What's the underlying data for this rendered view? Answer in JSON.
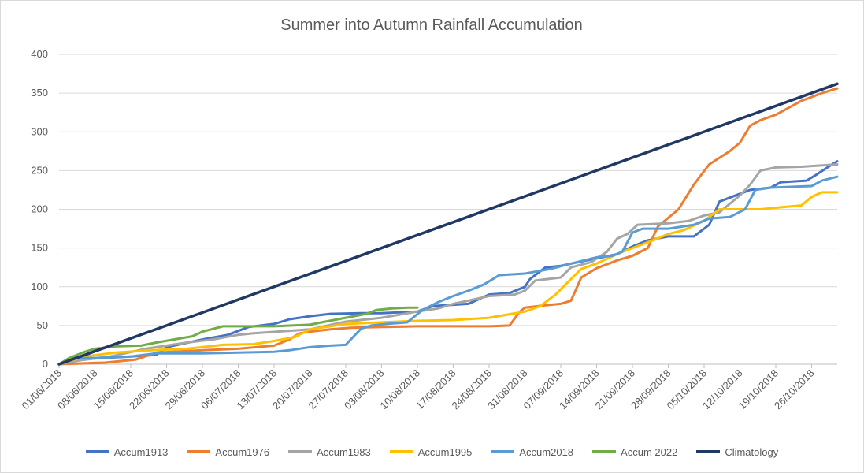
{
  "chart_data": {
    "type": "line",
    "title": "Summer  into Autumn Rainfall Accumulation",
    "xlabel": "",
    "ylabel": "",
    "ylim": [
      0,
      400
    ],
    "yticks": [
      "0",
      "50",
      "100",
      "150",
      "200",
      "250",
      "300",
      "350",
      "400"
    ],
    "x_start": "01/06/2018",
    "x_end": "31/10/2018",
    "x_tick_labels": [
      "01/06/2018",
      "08/06/2018",
      "15/06/2018",
      "22/06/2018",
      "29/06/2018",
      "06/07/2018",
      "13/07/2018",
      "20/07/2018",
      "27/07/2018",
      "03/08/2018",
      "10/08/2018",
      "17/08/2018",
      "24/08/2018",
      "31/08/2018",
      "07/09/2018",
      "14/09/2018",
      "21/09/2018",
      "28/09/2018",
      "05/10/2018",
      "12/10/2018",
      "19/10/2018",
      "26/10/2018"
    ],
    "grid": true,
    "legend_position": "bottom",
    "series": [
      {
        "name": "Accum1913",
        "color": "#4472c4",
        "points": [
          [
            "01/06/2018",
            0
          ],
          [
            "04/06/2018",
            6
          ],
          [
            "15/06/2018",
            10
          ],
          [
            "20/06/2018",
            12
          ],
          [
            "22/06/2018",
            22
          ],
          [
            "29/06/2018",
            32
          ],
          [
            "04/07/2018",
            38
          ],
          [
            "08/07/2018",
            48
          ],
          [
            "13/07/2018",
            52
          ],
          [
            "16/07/2018",
            58
          ],
          [
            "20/07/2018",
            62
          ],
          [
            "24/07/2018",
            65
          ],
          [
            "30/07/2018",
            66
          ],
          [
            "03/08/2018",
            66
          ],
          [
            "10/08/2018",
            68
          ],
          [
            "13/08/2018",
            75
          ],
          [
            "20/08/2018",
            78
          ],
          [
            "24/08/2018",
            90
          ],
          [
            "28/08/2018",
            92
          ],
          [
            "31/08/2018",
            100
          ],
          [
            "01/09/2018",
            110
          ],
          [
            "04/09/2018",
            125
          ],
          [
            "07/09/2018",
            127
          ],
          [
            "12/09/2018",
            134
          ],
          [
            "18/09/2018",
            142
          ],
          [
            "21/09/2018",
            152
          ],
          [
            "24/09/2018",
            160
          ],
          [
            "28/09/2018",
            165
          ],
          [
            "03/10/2018",
            165
          ],
          [
            "06/10/2018",
            180
          ],
          [
            "08/10/2018",
            210
          ],
          [
            "12/10/2018",
            220
          ],
          [
            "14/10/2018",
            225
          ],
          [
            "18/10/2018",
            228
          ],
          [
            "20/10/2018",
            235
          ],
          [
            "25/10/2018",
            237
          ],
          [
            "27/10/2018",
            245
          ],
          [
            "30/10/2018",
            258
          ],
          [
            "31/10/2018",
            262
          ]
        ]
      },
      {
        "name": "Accum1976",
        "color": "#ed7d31",
        "points": [
          [
            "01/06/2018",
            0
          ],
          [
            "10/06/2018",
            2
          ],
          [
            "16/06/2018",
            6
          ],
          [
            "20/06/2018",
            15
          ],
          [
            "29/06/2018",
            18
          ],
          [
            "06/07/2018",
            20
          ],
          [
            "13/07/2018",
            24
          ],
          [
            "16/07/2018",
            32
          ],
          [
            "18/07/2018",
            40
          ],
          [
            "20/07/2018",
            42
          ],
          [
            "24/07/2018",
            45
          ],
          [
            "28/07/2018",
            47
          ],
          [
            "03/08/2018",
            48
          ],
          [
            "10/08/2018",
            49
          ],
          [
            "17/08/2018",
            49
          ],
          [
            "24/08/2018",
            49
          ],
          [
            "28/08/2018",
            50
          ],
          [
            "30/08/2018",
            68
          ],
          [
            "31/08/2018",
            73
          ],
          [
            "04/09/2018",
            76
          ],
          [
            "07/09/2018",
            78
          ],
          [
            "09/09/2018",
            82
          ],
          [
            "11/09/2018",
            112
          ],
          [
            "14/09/2018",
            124
          ],
          [
            "18/09/2018",
            134
          ],
          [
            "21/09/2018",
            140
          ],
          [
            "24/09/2018",
            150
          ],
          [
            "26/09/2018",
            178
          ],
          [
            "30/09/2018",
            200
          ],
          [
            "03/10/2018",
            232
          ],
          [
            "06/10/2018",
            258
          ],
          [
            "10/10/2018",
            275
          ],
          [
            "12/10/2018",
            286
          ],
          [
            "14/10/2018",
            308
          ],
          [
            "16/10/2018",
            315
          ],
          [
            "19/10/2018",
            322
          ],
          [
            "24/10/2018",
            340
          ],
          [
            "28/10/2018",
            350
          ],
          [
            "31/10/2018",
            356
          ]
        ]
      },
      {
        "name": "Accum1983",
        "color": "#a5a5a5",
        "points": [
          [
            "01/06/2018",
            0
          ],
          [
            "05/06/2018",
            5
          ],
          [
            "11/06/2018",
            10
          ],
          [
            "18/06/2018",
            20
          ],
          [
            "22/06/2018",
            24
          ],
          [
            "26/06/2018",
            28
          ],
          [
            "01/07/2018",
            32
          ],
          [
            "06/07/2018",
            38
          ],
          [
            "09/07/2018",
            40
          ],
          [
            "20/07/2018",
            45
          ],
          [
            "27/07/2018",
            55
          ],
          [
            "03/08/2018",
            60
          ],
          [
            "10/08/2018",
            68
          ],
          [
            "14/08/2018",
            72
          ],
          [
            "17/08/2018",
            78
          ],
          [
            "20/08/2018",
            82
          ],
          [
            "24/08/2018",
            88
          ],
          [
            "29/08/2018",
            90
          ],
          [
            "31/08/2018",
            95
          ],
          [
            "02/09/2018",
            108
          ],
          [
            "07/09/2018",
            112
          ],
          [
            "09/09/2018",
            125
          ],
          [
            "13/09/2018",
            132
          ],
          [
            "16/09/2018",
            145
          ],
          [
            "18/09/2018",
            162
          ],
          [
            "20/09/2018",
            168
          ],
          [
            "22/09/2018",
            180
          ],
          [
            "28/09/2018",
            182
          ],
          [
            "02/10/2018",
            185
          ],
          [
            "05/10/2018",
            192
          ],
          [
            "08/10/2018",
            196
          ],
          [
            "12/10/2018",
            218
          ],
          [
            "14/10/2018",
            232
          ],
          [
            "16/10/2018",
            250
          ],
          [
            "19/10/2018",
            254
          ],
          [
            "24/10/2018",
            255
          ],
          [
            "31/10/2018",
            258
          ]
        ]
      },
      {
        "name": "Accum1995",
        "color": "#ffc000",
        "points": [
          [
            "01/06/2018",
            0
          ],
          [
            "06/06/2018",
            10
          ],
          [
            "12/06/2018",
            15
          ],
          [
            "19/06/2018",
            18
          ],
          [
            "26/06/2018",
            20
          ],
          [
            "03/07/2018",
            25
          ],
          [
            "09/07/2018",
            26
          ],
          [
            "13/07/2018",
            30
          ],
          [
            "17/07/2018",
            35
          ],
          [
            "20/07/2018",
            45
          ],
          [
            "27/07/2018",
            52
          ],
          [
            "03/08/2018",
            54
          ],
          [
            "10/08/2018",
            56
          ],
          [
            "17/08/2018",
            57
          ],
          [
            "24/08/2018",
            60
          ],
          [
            "31/08/2018",
            68
          ],
          [
            "03/09/2018",
            75
          ],
          [
            "06/09/2018",
            90
          ],
          [
            "09/09/2018",
            110
          ],
          [
            "11/09/2018",
            123
          ],
          [
            "14/09/2018",
            130
          ],
          [
            "19/09/2018",
            145
          ],
          [
            "21/09/2018",
            150
          ],
          [
            "25/09/2018",
            160
          ],
          [
            "28/09/2018",
            168
          ],
          [
            "01/10/2018",
            173
          ],
          [
            "05/10/2018",
            185
          ],
          [
            "08/10/2018",
            200
          ],
          [
            "12/10/2018",
            200
          ],
          [
            "16/10/2018",
            200
          ],
          [
            "19/10/2018",
            202
          ],
          [
            "24/10/2018",
            205
          ],
          [
            "26/10/2018",
            216
          ],
          [
            "28/10/2018",
            222
          ],
          [
            "31/10/2018",
            222
          ]
        ]
      },
      {
        "name": "Accum2018",
        "color": "#5b9bd5",
        "points": [
          [
            "01/06/2018",
            0
          ],
          [
            "03/06/2018",
            8
          ],
          [
            "08/06/2018",
            8
          ],
          [
            "15/06/2018",
            10
          ],
          [
            "20/06/2018",
            14
          ],
          [
            "29/06/2018",
            14
          ],
          [
            "06/07/2018",
            15
          ],
          [
            "13/07/2018",
            16
          ],
          [
            "16/07/2018",
            18
          ],
          [
            "20/07/2018",
            22
          ],
          [
            "24/07/2018",
            24
          ],
          [
            "27/07/2018",
            25
          ],
          [
            "30/07/2018",
            46
          ],
          [
            "01/08/2018",
            50
          ],
          [
            "04/08/2018",
            52
          ],
          [
            "08/08/2018",
            54
          ],
          [
            "11/08/2018",
            70
          ],
          [
            "14/08/2018",
            80
          ],
          [
            "17/08/2018",
            88
          ],
          [
            "20/08/2018",
            95
          ],
          [
            "23/08/2018",
            103
          ],
          [
            "26/08/2018",
            115
          ],
          [
            "31/08/2018",
            117
          ],
          [
            "05/09/2018",
            123
          ],
          [
            "09/09/2018",
            130
          ],
          [
            "14/09/2018",
            138
          ],
          [
            "17/09/2018",
            140
          ],
          [
            "19/09/2018",
            145
          ],
          [
            "21/09/2018",
            170
          ],
          [
            "23/09/2018",
            175
          ],
          [
            "28/09/2018",
            175
          ],
          [
            "03/10/2018",
            180
          ],
          [
            "06/10/2018",
            188
          ],
          [
            "10/10/2018",
            190
          ],
          [
            "13/10/2018",
            200
          ],
          [
            "15/10/2018",
            225
          ],
          [
            "18/10/2018",
            228
          ],
          [
            "26/10/2018",
            230
          ],
          [
            "28/10/2018",
            237
          ],
          [
            "31/10/2018",
            242
          ]
        ]
      },
      {
        "name": "Accum 2022",
        "color": "#70ad47",
        "points": [
          [
            "01/06/2018",
            0
          ],
          [
            "03/06/2018",
            8
          ],
          [
            "06/06/2018",
            16
          ],
          [
            "08/06/2018",
            20
          ],
          [
            "12/06/2018",
            23
          ],
          [
            "17/06/2018",
            24
          ],
          [
            "20/06/2018",
            28
          ],
          [
            "27/06/2018",
            36
          ],
          [
            "29/06/2018",
            42
          ],
          [
            "03/07/2018",
            49
          ],
          [
            "13/07/2018",
            49
          ],
          [
            "20/07/2018",
            51
          ],
          [
            "23/07/2018",
            55
          ],
          [
            "27/07/2018",
            60
          ],
          [
            "31/07/2018",
            65
          ],
          [
            "02/08/2018",
            70
          ],
          [
            "05/08/2018",
            72
          ],
          [
            "08/08/2018",
            73
          ],
          [
            "10/08/2018",
            73
          ]
        ]
      },
      {
        "name": "Climatology",
        "color": "#203864",
        "points": [
          [
            "01/06/2018",
            0
          ],
          [
            "31/10/2018",
            362
          ]
        ]
      }
    ]
  }
}
